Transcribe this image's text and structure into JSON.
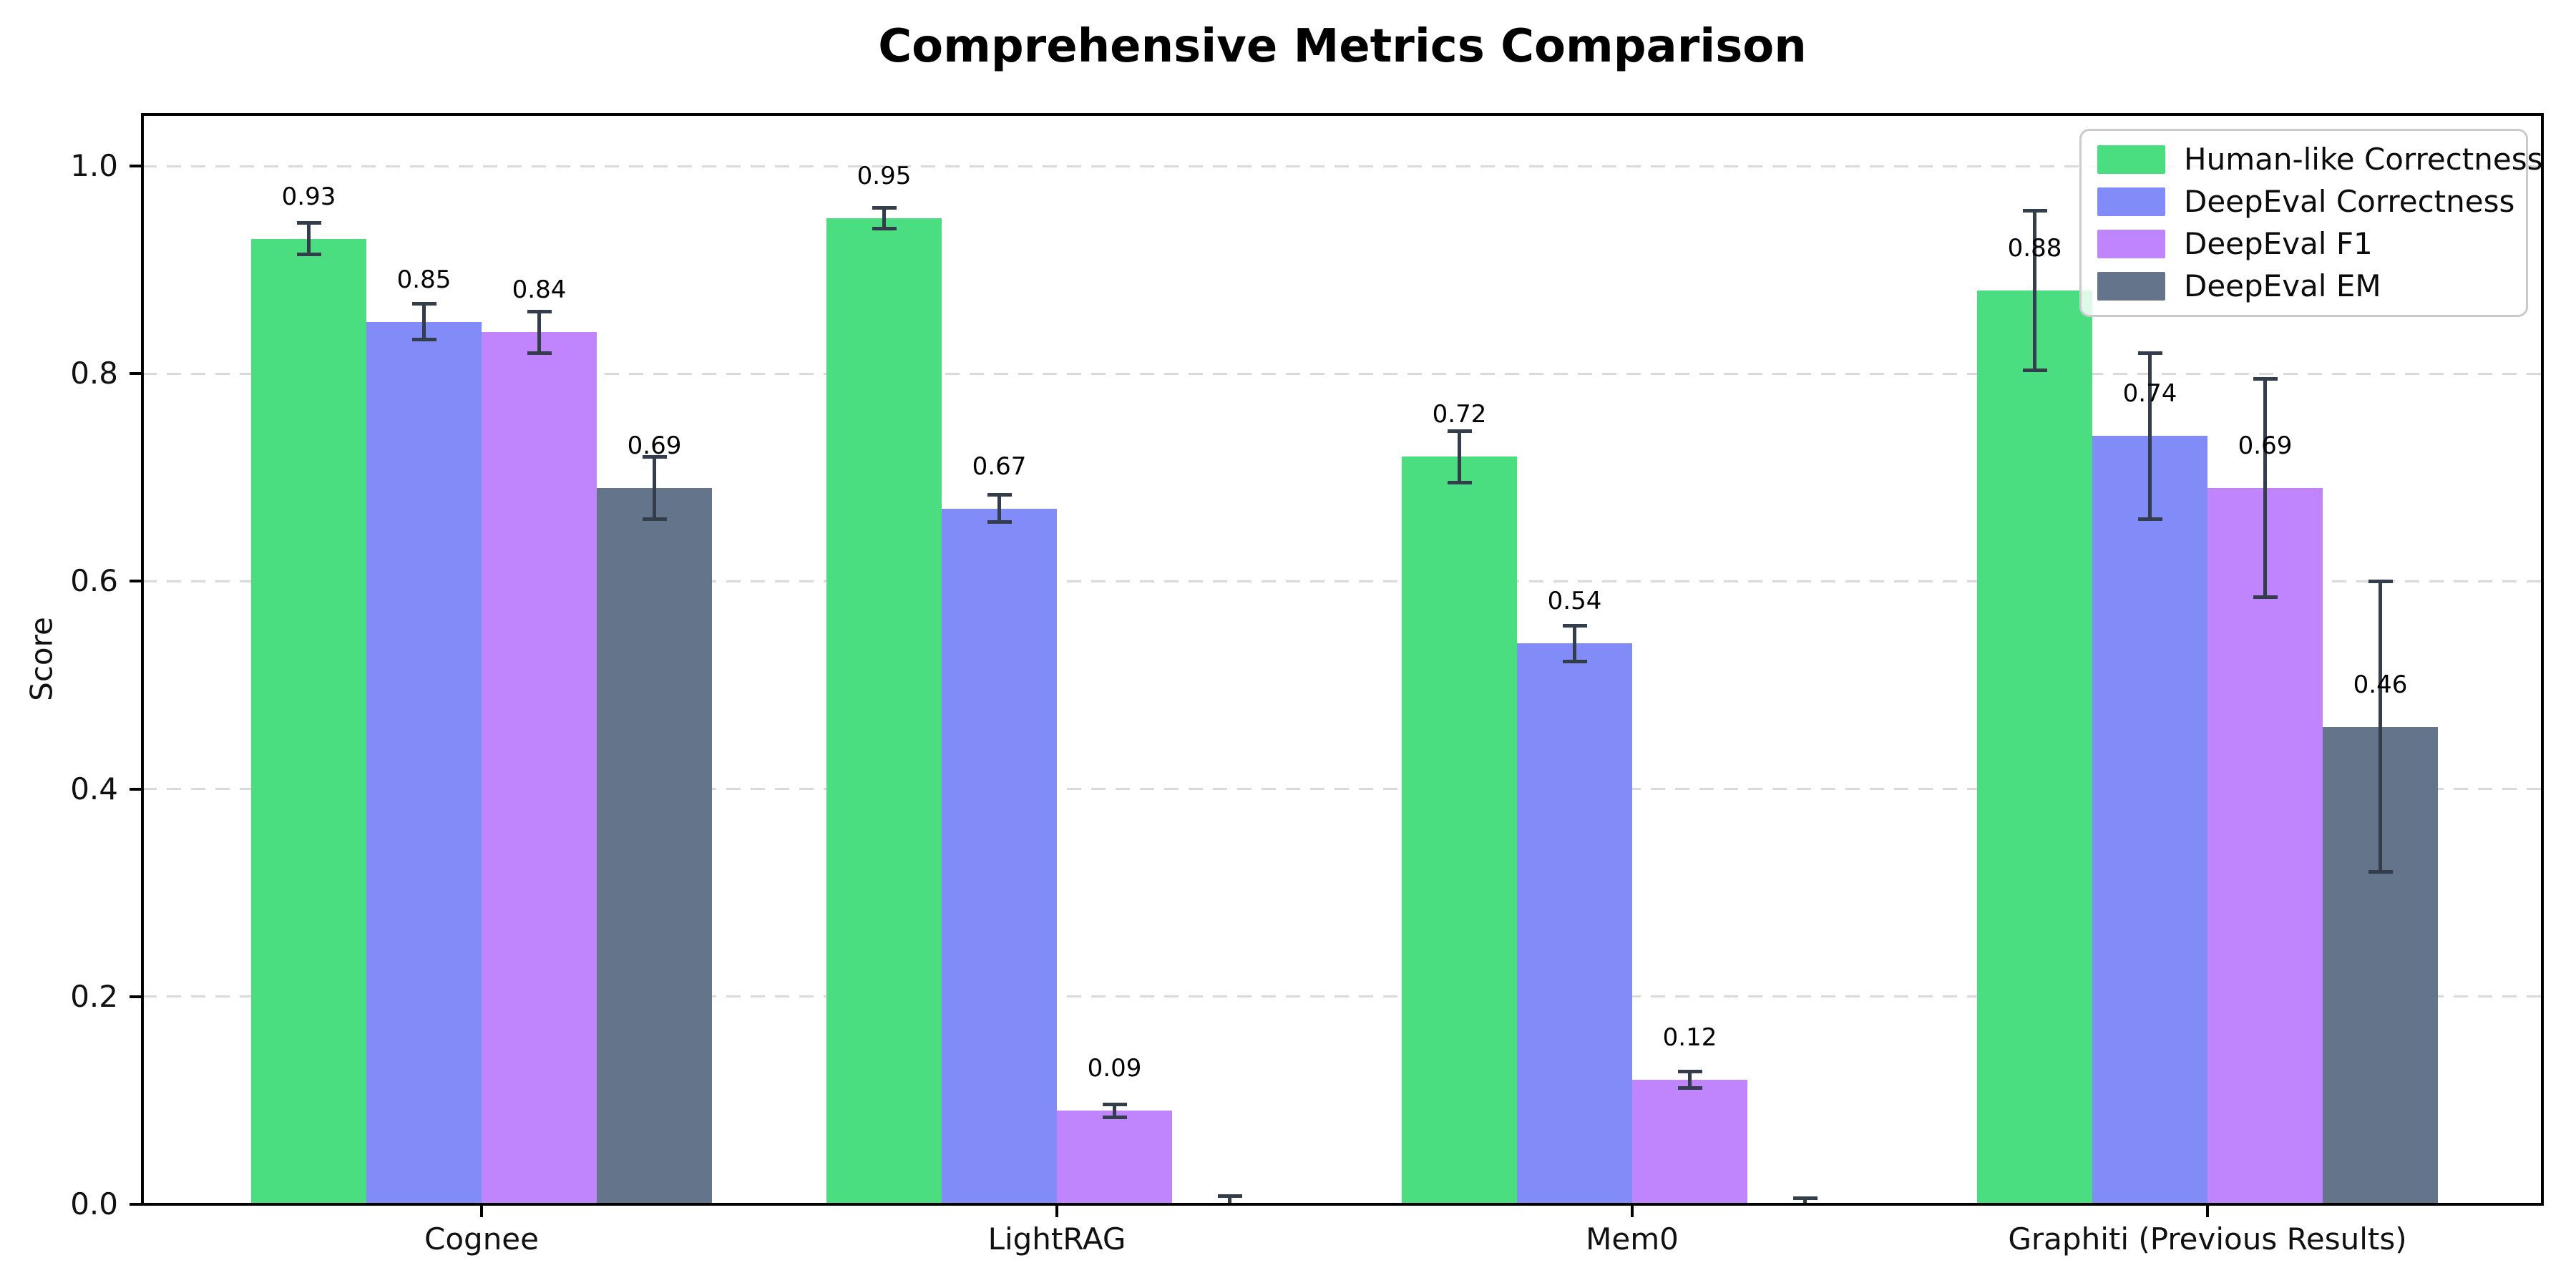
{
  "figure": {
    "title": "Comprehensive Metrics Comparison",
    "ylabel": "Score"
  },
  "chart_data": {
    "type": "bar",
    "title": "Comprehensive Metrics Comparison",
    "xlabel": "",
    "ylabel": "Score",
    "categories": [
      "Cognee",
      "LightRAG",
      "Mem0",
      "Graphiti (Previous Results)"
    ],
    "series": [
      {
        "name": "Human-like Correctness",
        "color": "#4ade80",
        "values": [
          0.93,
          0.95,
          0.72,
          0.88
        ],
        "errors": [
          0.015,
          0.01,
          0.025,
          0.077
        ],
        "value_labels": [
          "0.93",
          "0.95",
          "0.72",
          "0.88"
        ]
      },
      {
        "name": "DeepEval Correctness",
        "color": "#818cf8",
        "values": [
          0.85,
          0.67,
          0.54,
          0.74
        ],
        "errors": [
          0.017,
          0.013,
          0.017,
          0.08
        ],
        "value_labels": [
          "0.85",
          "0.67",
          "0.54",
          "0.74"
        ]
      },
      {
        "name": "DeepEval F1",
        "color": "#c084fc",
        "values": [
          0.84,
          0.09,
          0.12,
          0.69
        ],
        "errors": [
          0.02,
          0.006,
          0.008,
          0.105
        ],
        "value_labels": [
          "0.84",
          "0.09",
          "0.12",
          "0.69"
        ]
      },
      {
        "name": "DeepEval EM",
        "color": "#64748b",
        "values": [
          0.69,
          0.0,
          0.0,
          0.46
        ],
        "errors": [
          0.03,
          0.008,
          0.006,
          0.14
        ],
        "value_labels": [
          "0.69",
          "",
          "",
          "0.46"
        ]
      }
    ],
    "y_ticks": [
      "0.0",
      "0.2",
      "0.4",
      "0.6",
      "0.8",
      "1.0"
    ],
    "y_tick_values": [
      0.0,
      0.2,
      0.4,
      0.6,
      0.8,
      1.0
    ],
    "ylim": [
      0,
      1.05
    ],
    "grid": "horizontal-dashed",
    "gridline_color": "#d9d9d9",
    "error_bar_color": "#333d4c",
    "legend_position": "upper-right",
    "legend_entries": [
      "Human-like Correctness",
      "DeepEval Correctness",
      "DeepEval F1",
      "DeepEval EM"
    ]
  }
}
